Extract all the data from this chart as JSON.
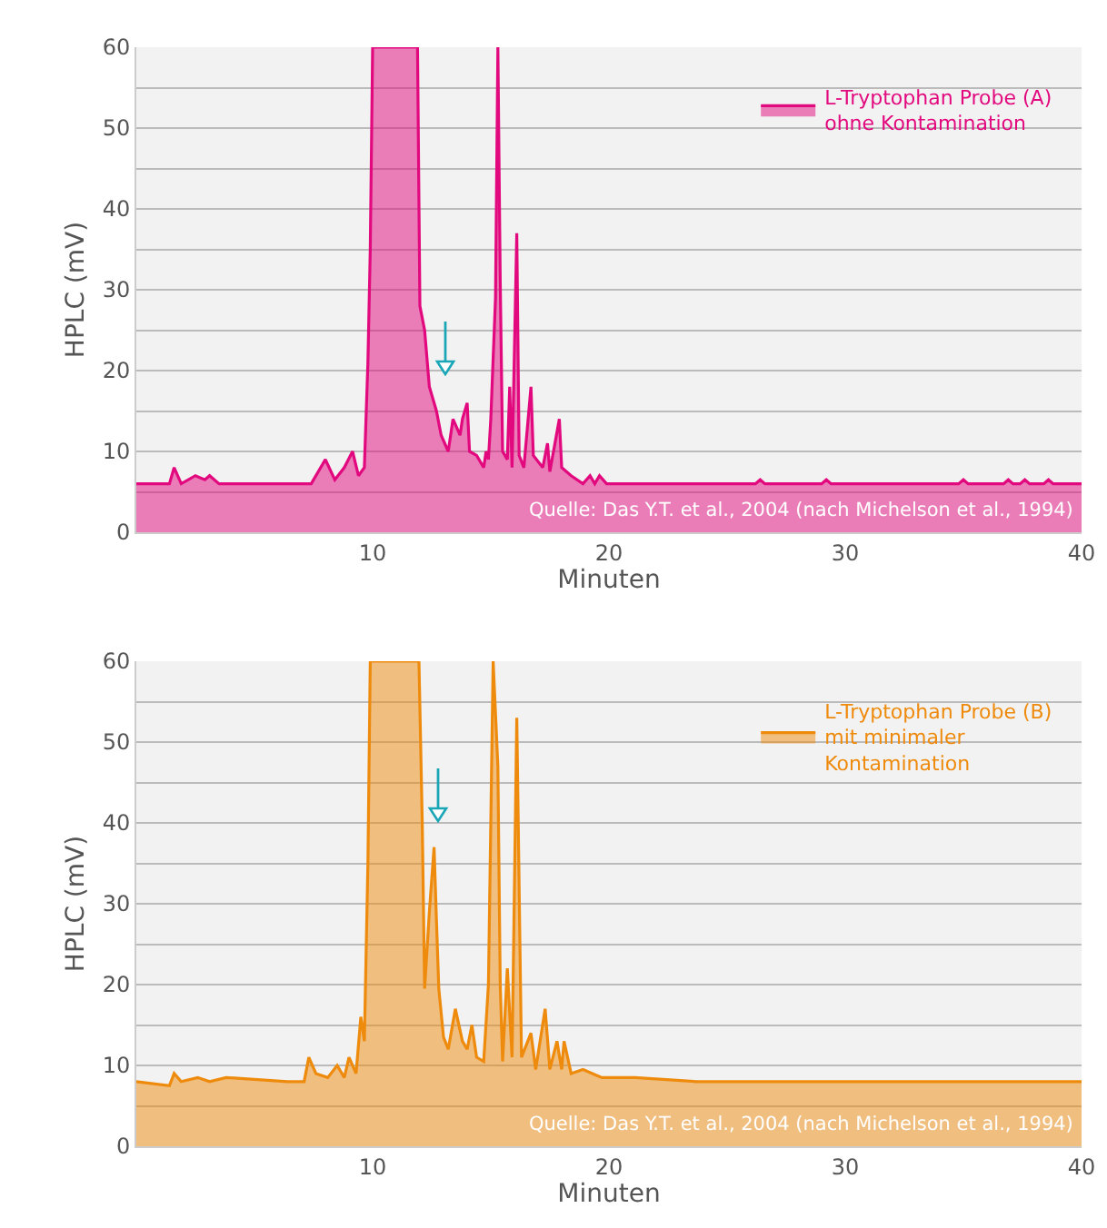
{
  "chart_data": [
    {
      "type": "area",
      "xlabel": "Minuten",
      "ylabel": "HPLC (mV)",
      "xlim": [
        0,
        40
      ],
      "ylim": [
        0,
        60
      ],
      "xticks": [
        10,
        20,
        30,
        40
      ],
      "yticks": [
        0,
        {
          "value": 5,
          "label": null
        },
        10,
        {
          "value": 15,
          "label": null
        },
        20,
        {
          "value": 25,
          "label": null
        },
        30,
        {
          "value": 35,
          "label": null
        },
        40,
        {
          "value": 45,
          "label": null
        },
        50,
        {
          "value": 55,
          "label": null
        },
        60
      ],
      "grid": "y",
      "legend": "top right",
      "marker": "none",
      "series": [
        {
          "name": "L-Tryptophan Probe (A)\nohne Kontamination",
          "color": "#e2087e",
          "x": [
            0,
            1.4,
            1.6,
            1.9,
            2.5,
            2.9,
            3.1,
            3.5,
            4.9,
            6.1,
            6.9,
            7.4,
            8.0,
            8.4,
            8.8,
            9.15,
            9.4,
            9.65,
            9.8,
            9.9,
            10.0,
            11.9,
            12.0,
            12.2,
            12.4,
            12.7,
            12.9,
            13.2,
            13.4,
            13.7,
            13.8,
            14.0,
            14.1,
            14.4,
            14.7,
            14.8,
            14.9,
            15.0,
            15.2,
            15.3,
            15.4,
            15.5,
            15.7,
            15.8,
            15.9,
            16.1,
            16.2,
            16.4,
            16.7,
            16.8,
            17.2,
            17.4,
            17.5,
            17.9,
            18.0,
            18.4,
            18.9,
            19.2,
            19.4,
            19.6,
            19.9,
            26.2,
            26.4,
            26.6,
            29.0,
            29.2,
            29.4,
            34.8,
            35.0,
            35.2,
            36.7,
            36.9,
            37.1,
            37.4,
            37.6,
            37.8,
            38.4,
            38.6,
            38.8,
            40
          ],
          "values": [
            6,
            6,
            8,
            6,
            7,
            6.5,
            7,
            6,
            6,
            6,
            6,
            6,
            9,
            6.5,
            8,
            10,
            7,
            8,
            21,
            35,
            60,
            60,
            28,
            25,
            18,
            15,
            12,
            10,
            14,
            12,
            14,
            16,
            10,
            9.5,
            8,
            10,
            9,
            14,
            29,
            60,
            31,
            10,
            9,
            18,
            8,
            37,
            9.5,
            8,
            18,
            9.5,
            8,
            11,
            7.5,
            14,
            8,
            7,
            6,
            7,
            6,
            7,
            6,
            6,
            6.5,
            6,
            6,
            6.5,
            6,
            6,
            6.5,
            6,
            6,
            6.5,
            6,
            6,
            6.5,
            6,
            6,
            6.5,
            6,
            6
          ]
        }
      ],
      "annotations": [
        "Quelle: Das Y.T. et al., 2004 (nach Michelson et al., 1994)"
      ]
    },
    {
      "type": "area",
      "xlabel": "Minuten",
      "ylabel": "HPLC (mV)",
      "xlim": [
        0,
        40
      ],
      "ylim": [
        0,
        60
      ],
      "xticks": [
        10,
        20,
        30,
        40
      ],
      "yticks": [
        0,
        {
          "value": 5,
          "label": null
        },
        10,
        {
          "value": 15,
          "label": null
        },
        20,
        {
          "value": 25,
          "label": null
        },
        30,
        {
          "value": 35,
          "label": null
        },
        40,
        {
          "value": 45,
          "label": null
        },
        50,
        {
          "value": 55,
          "label": null
        },
        60
      ],
      "grid": "y",
      "legend": "top right",
      "marker": "none",
      "series": [
        {
          "name": "L-Tryptophan Probe (B)\nmit minimaler\nKontamination",
          "color": "#ee8a0c",
          "x": [
            0,
            1.4,
            1.6,
            1.9,
            2.6,
            3.1,
            3.8,
            6.4,
            7.1,
            7.3,
            7.6,
            8.1,
            8.5,
            8.8,
            9.0,
            9.3,
            9.5,
            9.65,
            9.8,
            9.9,
            11.96,
            12.1,
            12.2,
            12.4,
            12.6,
            12.7,
            12.8,
            13.0,
            13.2,
            13.5,
            13.8,
            14.0,
            14.2,
            14.4,
            14.7,
            14.9,
            15.1,
            15.3,
            15.4,
            15.5,
            15.7,
            15.9,
            16.1,
            16.3,
            16.7,
            16.9,
            17.3,
            17.5,
            17.8,
            18.0,
            18.1,
            18.4,
            18.9,
            19.7,
            20.2,
            21.1,
            23.7,
            40
          ],
          "values": [
            8,
            7.5,
            9,
            8,
            8.5,
            8,
            8.5,
            8,
            8,
            11,
            9,
            8.5,
            10,
            8.5,
            11,
            9,
            16,
            13,
            35,
            60,
            60,
            40,
            19.5,
            29,
            37,
            28,
            19.5,
            13.5,
            12,
            17,
            13,
            12,
            15,
            11,
            10.5,
            20,
            60,
            47,
            20,
            10.5,
            22,
            11,
            53,
            11,
            14,
            9.5,
            17,
            9.5,
            13,
            9.5,
            13,
            9,
            9.5,
            8.5,
            8.5,
            8.5,
            8,
            8
          ]
        }
      ],
      "annotations": [
        "Quelle: Das Y.T. et al., 2004 (nach Michelson et al., 1994)"
      ]
    }
  ]
}
